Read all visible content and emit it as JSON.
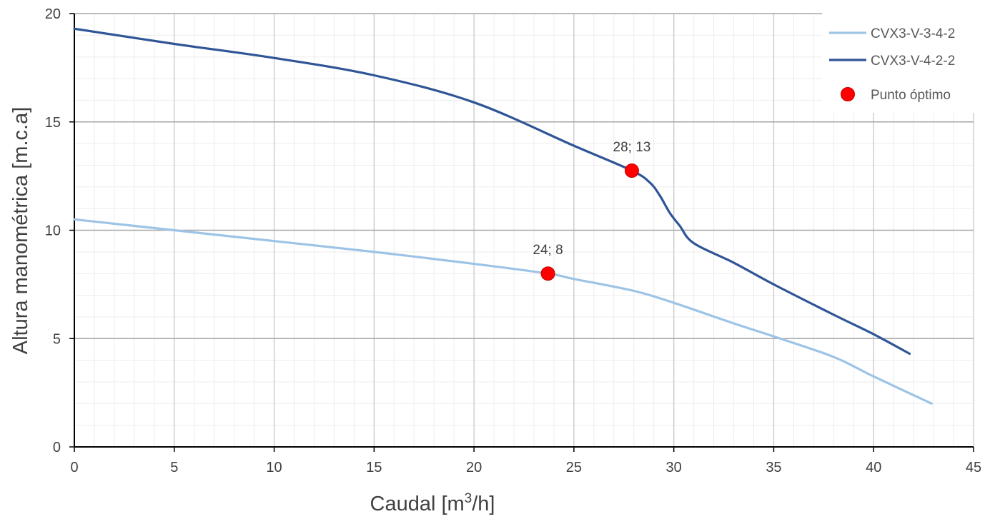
{
  "chart_data": {
    "type": "line",
    "title": "",
    "xlabel_main": "Caudal [m",
    "xlabel_sup": "3",
    "xlabel_tail": "/h]",
    "ylabel": "Altura manométrica [m.c.a]",
    "xlim": [
      0,
      45
    ],
    "ylim": [
      0,
      20
    ],
    "x_ticks": [
      0,
      5,
      10,
      15,
      20,
      25,
      30,
      35,
      40,
      45
    ],
    "y_ticks": [
      0,
      5,
      10,
      15,
      20
    ],
    "x_minor_step": 1,
    "y_minor_step": 1,
    "grid": true,
    "legend_position": "top-right",
    "series": [
      {
        "name": "CVX3-V-3-4-2",
        "color": "#9DC3E6",
        "x": [
          0,
          5,
          10,
          15,
          20,
          23.7,
          25,
          28,
          30,
          33,
          35,
          38,
          40,
          42.9
        ],
        "y": [
          10.5,
          10.0,
          9.5,
          9.0,
          8.45,
          8.0,
          7.75,
          7.2,
          6.65,
          5.7,
          5.1,
          4.15,
          3.25,
          2.0
        ]
      },
      {
        "name": "CVX3-V-4-2-2",
        "color": "#2F5597",
        "x": [
          0,
          5,
          10,
          15,
          20,
          25,
          27.9,
          28.8,
          29.3,
          29.8,
          30.3,
          31,
          33,
          35,
          38,
          40,
          41.8
        ],
        "y": [
          19.3,
          18.6,
          17.95,
          17.15,
          15.9,
          13.9,
          12.75,
          12.2,
          11.6,
          10.8,
          10.2,
          9.4,
          8.5,
          7.5,
          6.1,
          5.2,
          4.3
        ]
      }
    ],
    "points": {
      "name": "Punto óptimo",
      "color": "#FF0000",
      "items": [
        {
          "x": 23.7,
          "y": 8.0,
          "label": "24; 8"
        },
        {
          "x": 27.9,
          "y": 12.75,
          "label": "28; 13"
        }
      ]
    }
  }
}
